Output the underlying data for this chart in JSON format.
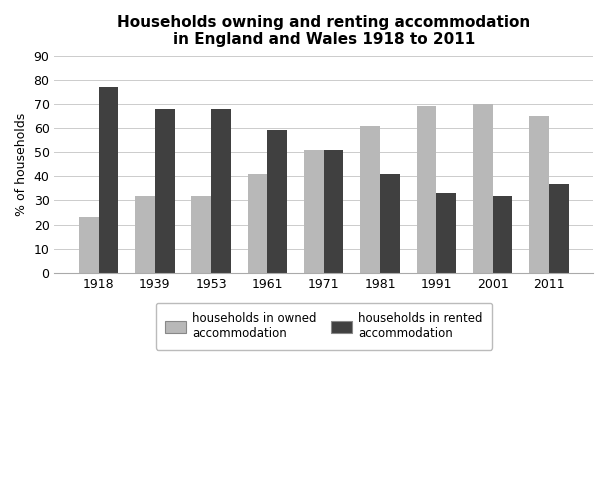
{
  "title": "Households owning and renting accommodation\nin England and Wales 1918 to 2011",
  "ylabel": "% of households",
  "years": [
    "1918",
    "1939",
    "1953",
    "1961",
    "1971",
    "1981",
    "1991",
    "2001",
    "2011"
  ],
  "owned": [
    23,
    32,
    32,
    41,
    51,
    61,
    69,
    70,
    65
  ],
  "rented": [
    77,
    68,
    68,
    59,
    51,
    41,
    33,
    32,
    37
  ],
  "owned_color": "#b8b8b8",
  "rented_color": "#404040",
  "ylim": [
    0,
    90
  ],
  "yticks": [
    0,
    10,
    20,
    30,
    40,
    50,
    60,
    70,
    80,
    90
  ],
  "legend_owned": "households in owned\naccommodation",
  "legend_rented": "households in rented\naccommodation",
  "bar_width": 0.35,
  "background_color": "#ffffff",
  "title_fontsize": 11,
  "axis_fontsize": 9,
  "tick_fontsize": 9,
  "legend_fontsize": 8.5
}
